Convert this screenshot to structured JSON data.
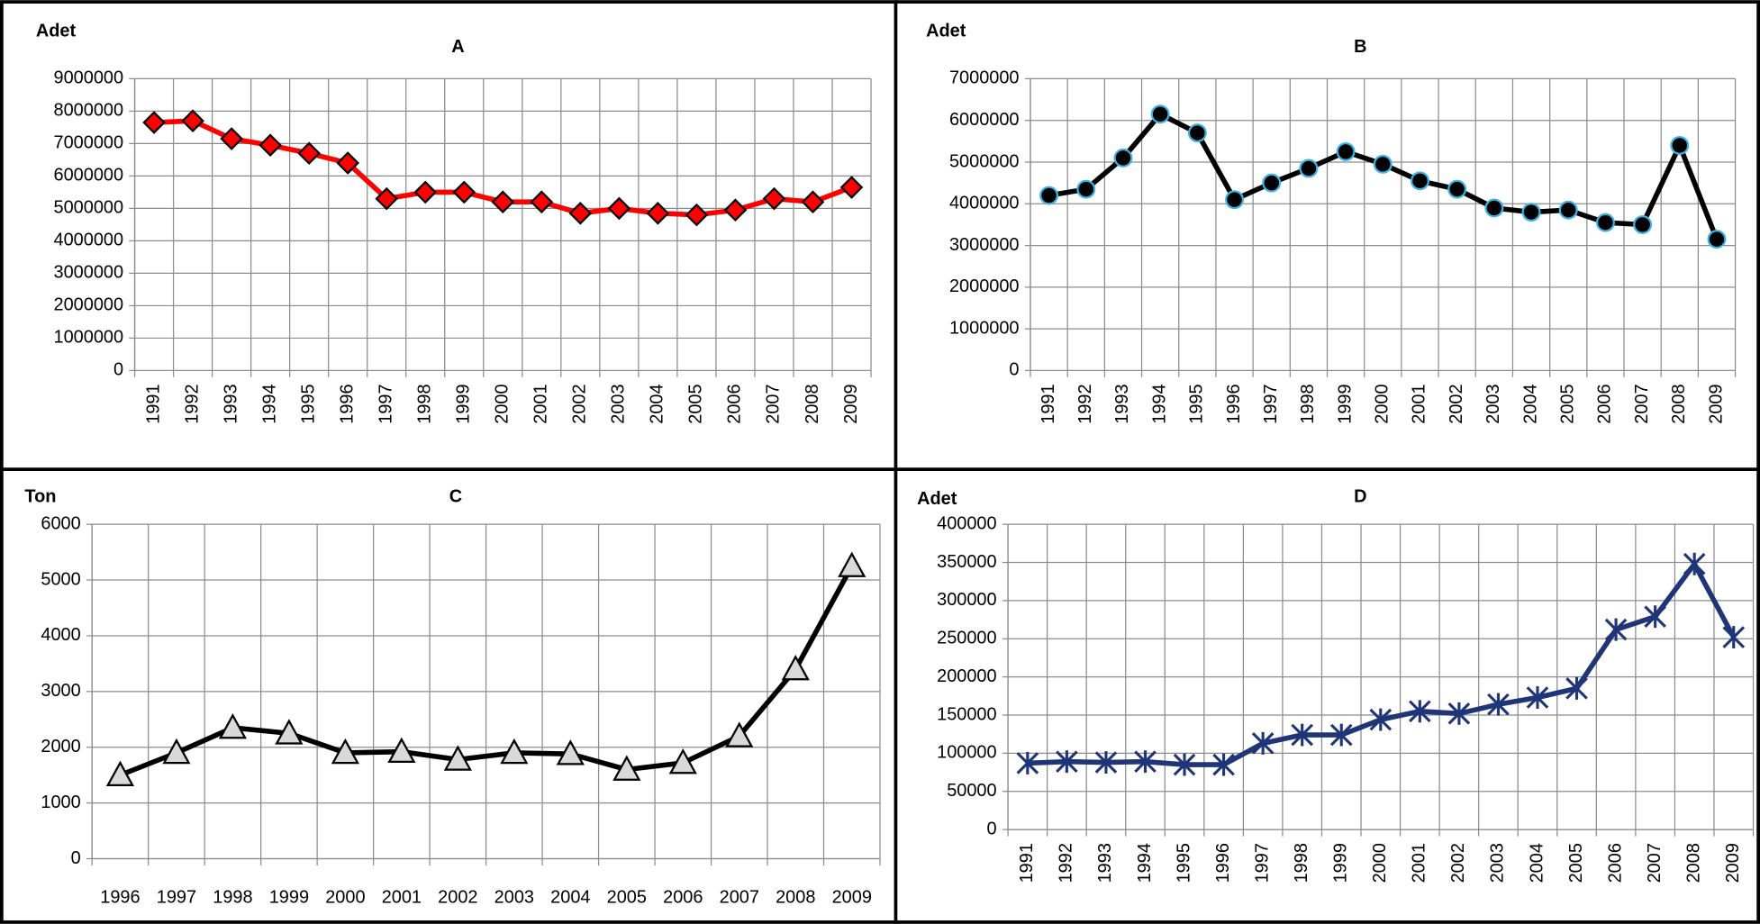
{
  "chart_data": [
    {
      "type": "line",
      "title": "A",
      "y_label": "Adet",
      "categories": [
        "1991",
        "1992",
        "1993",
        "1994",
        "1995",
        "1996",
        "1997",
        "1998",
        "1999",
        "2000",
        "2001",
        "2002",
        "2003",
        "2004",
        "2005",
        "2006",
        "2007",
        "2008",
        "2009"
      ],
      "values": [
        7650000,
        7700000,
        7150000,
        6950000,
        6700000,
        6400000,
        5300000,
        5500000,
        5500000,
        5200000,
        5200000,
        4850000,
        5000000,
        4850000,
        4800000,
        4950000,
        5300000,
        5200000,
        5650000
      ],
      "color": "#ff0000",
      "marker": "diamond",
      "marker_fill": "#ff0000",
      "marker_stroke": "#000000",
      "ylim": [
        0,
        9000000
      ],
      "yticks": [
        0,
        1000000,
        2000000,
        3000000,
        4000000,
        5000000,
        6000000,
        7000000,
        8000000,
        9000000
      ],
      "grid": true
    },
    {
      "type": "line",
      "title": "B",
      "y_label": "Adet",
      "categories": [
        "1991",
        "1992",
        "1993",
        "1994",
        "1995",
        "1996",
        "1997",
        "1998",
        "1999",
        "2000",
        "2001",
        "2002",
        "2003",
        "2004",
        "2005",
        "2006",
        "2007",
        "2008",
        "2009"
      ],
      "values": [
        4200000,
        4350000,
        5100000,
        6150000,
        5700000,
        4100000,
        4500000,
        4850000,
        5250000,
        4950000,
        4550000,
        4350000,
        3900000,
        3800000,
        3850000,
        3550000,
        3500000,
        5400000,
        3150000
      ],
      "color": "#000000",
      "marker": "circle",
      "marker_fill": "#000000",
      "marker_stroke": "#3cb4e6",
      "ylim": [
        0,
        7000000
      ],
      "yticks": [
        0,
        1000000,
        2000000,
        3000000,
        4000000,
        5000000,
        6000000,
        7000000
      ],
      "grid": true
    },
    {
      "type": "line",
      "title": "C",
      "y_label": "Ton",
      "categories": [
        "1996",
        "1997",
        "1998",
        "1999",
        "2000",
        "2001",
        "2002",
        "2003",
        "2004",
        "2005",
        "2006",
        "2007",
        "2008",
        "2009"
      ],
      "values": [
        1500,
        1900,
        2350,
        2250,
        1900,
        1920,
        1780,
        1900,
        1880,
        1600,
        1720,
        2200,
        3400,
        5250
      ],
      "color": "#000000",
      "marker": "triangle",
      "marker_fill": "#d9d9d9",
      "marker_stroke": "#000000",
      "ylim": [
        0,
        6000
      ],
      "yticks": [
        0,
        1000,
        2000,
        3000,
        4000,
        5000,
        6000
      ],
      "grid": true
    },
    {
      "type": "line",
      "title": "D",
      "y_label": "Adet",
      "categories": [
        "1991",
        "1992",
        "1993",
        "1994",
        "1995",
        "1996",
        "1997",
        "1998",
        "1999",
        "2000",
        "2001",
        "2002",
        "2003",
        "2004",
        "2005",
        "2006",
        "2007",
        "2008",
        "2009"
      ],
      "values": [
        87000,
        89000,
        88000,
        89000,
        85000,
        85000,
        113000,
        124000,
        124000,
        144000,
        155000,
        152000,
        164000,
        173000,
        185000,
        262000,
        279000,
        348000,
        252000
      ],
      "color": "#1f3578",
      "marker": "star",
      "marker_fill": "none",
      "marker_stroke": "#1f3578",
      "ylim": [
        0,
        400000
      ],
      "yticks": [
        0,
        50000,
        100000,
        150000,
        200000,
        250000,
        300000,
        350000,
        400000
      ],
      "grid": true
    }
  ]
}
